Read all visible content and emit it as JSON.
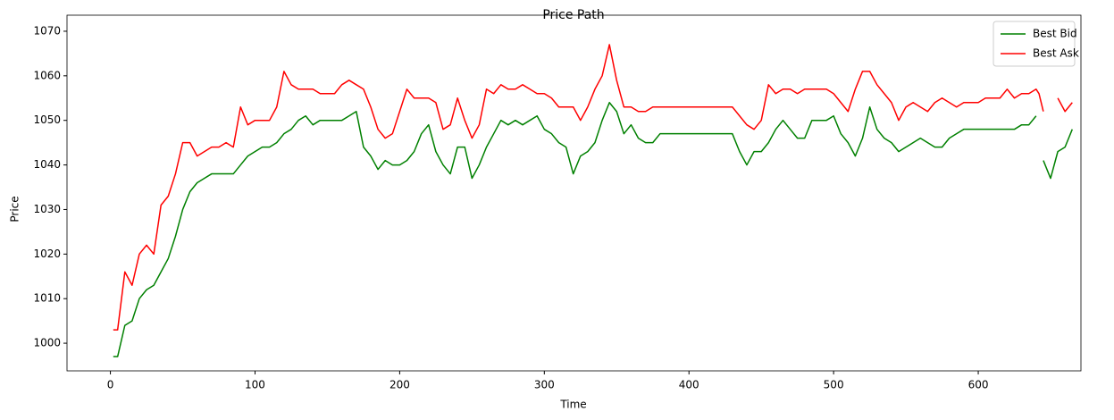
{
  "chart_data": {
    "type": "line",
    "title": "Price Path",
    "xlabel": "Time",
    "ylabel": "Price",
    "x": [
      2,
      5,
      10,
      15,
      20,
      25,
      30,
      35,
      40,
      45,
      50,
      55,
      60,
      65,
      70,
      75,
      80,
      85,
      90,
      95,
      100,
      105,
      110,
      115,
      120,
      125,
      130,
      135,
      140,
      145,
      150,
      155,
      160,
      165,
      170,
      175,
      180,
      185,
      190,
      195,
      200,
      205,
      210,
      215,
      220,
      225,
      230,
      235,
      240,
      245,
      250,
      255,
      260,
      265,
      270,
      275,
      280,
      285,
      290,
      295,
      300,
      305,
      310,
      315,
      320,
      325,
      330,
      335,
      340,
      345,
      350,
      355,
      360,
      365,
      370,
      375,
      380,
      385,
      390,
      395,
      400,
      405,
      410,
      415,
      420,
      425,
      430,
      435,
      440,
      445,
      450,
      455,
      460,
      465,
      470,
      475,
      480,
      485,
      490,
      495,
      500,
      505,
      510,
      515,
      520,
      525,
      530,
      535,
      540,
      545,
      550,
      555,
      560,
      565,
      570,
      575,
      580,
      585,
      590,
      595,
      600,
      605,
      610,
      615,
      620,
      625,
      630,
      635,
      640,
      642,
      645,
      650,
      655,
      660,
      665
    ],
    "series": [
      {
        "name": "Best Bid",
        "color": "#008000",
        "values": [
          997,
          997,
          1004,
          1005,
          1010,
          1012,
          1013,
          1016,
          1019,
          1024,
          1030,
          1034,
          1036,
          1037,
          1038,
          1038,
          1038,
          1038,
          1040,
          1042,
          1043,
          1044,
          1044,
          1045,
          1047,
          1048,
          1050,
          1051,
          1049,
          1050,
          1050,
          1050,
          1050,
          1051,
          1052,
          1044,
          1042,
          1039,
          1041,
          1040,
          1040,
          1041,
          1043,
          1047,
          1049,
          1043,
          1040,
          1038,
          1044,
          1044,
          1037,
          1040,
          1044,
          1047,
          1050,
          1049,
          1050,
          1049,
          1050,
          1051,
          1048,
          1047,
          1045,
          1044,
          1038,
          1042,
          1043,
          1045,
          1050,
          1054,
          1052,
          1047,
          1049,
          1046,
          1045,
          1045,
          1047,
          1047,
          1047,
          1047,
          1047,
          1047,
          1047,
          1047,
          1047,
          1047,
          1047,
          1043,
          1040,
          1043,
          1043,
          1045,
          1048,
          1050,
          1048,
          1046,
          1046,
          1050,
          1050,
          1050,
          1051,
          1047,
          1045,
          1042,
          1046,
          1053,
          1048,
          1046,
          1045,
          1043,
          1044,
          1045,
          1046,
          1045,
          1044,
          1044,
          1046,
          1047,
          1048,
          1048,
          1048,
          1048,
          1048,
          1048,
          1048,
          1048,
          1049,
          1049,
          1051,
          null,
          1041,
          1037,
          1043,
          1044,
          1048
        ]
      },
      {
        "name": "Best Ask",
        "color": "#ff0000",
        "values": [
          1003,
          1003,
          1016,
          1013,
          1020,
          1022,
          1020,
          1031,
          1033,
          1038,
          1045,
          1045,
          1042,
          1043,
          1044,
          1044,
          1045,
          1044,
          1053,
          1049,
          1050,
          1050,
          1050,
          1053,
          1061,
          1058,
          1057,
          1057,
          1057,
          1056,
          1056,
          1056,
          1058,
          1059,
          1058,
          1057,
          1053,
          1048,
          1046,
          1047,
          1052,
          1057,
          1055,
          1055,
          1055,
          1054,
          1048,
          1049,
          1055,
          1050,
          1046,
          1049,
          1057,
          1056,
          1058,
          1057,
          1057,
          1058,
          1057,
          1056,
          1056,
          1055,
          1053,
          1053,
          1053,
          1050,
          1053,
          1057,
          1060,
          1067,
          1059,
          1053,
          1053,
          1052,
          1052,
          1053,
          1053,
          1053,
          1053,
          1053,
          1053,
          1053,
          1053,
          1053,
          1053,
          1053,
          1053,
          1051,
          1049,
          1048,
          1050,
          1058,
          1056,
          1057,
          1057,
          1056,
          1057,
          1057,
          1057,
          1057,
          1056,
          1054,
          1052,
          1057,
          1061,
          1061,
          1058,
          1056,
          1054,
          1050,
          1053,
          1054,
          1053,
          1052,
          1054,
          1055,
          1054,
          1053,
          1054,
          1054,
          1054,
          1055,
          1055,
          1055,
          1057,
          1055,
          1056,
          1056,
          1057,
          1056,
          1052,
          null,
          1055,
          1052,
          1054
        ]
      }
    ],
    "xlim": [
      -30,
      671
    ],
    "ylim": [
      993.8,
      1073.6
    ],
    "xticks": [
      0,
      100,
      200,
      300,
      400,
      500,
      600
    ],
    "yticks": [
      1000,
      1010,
      1020,
      1030,
      1040,
      1050,
      1060,
      1070
    ],
    "legend": "upper right"
  }
}
